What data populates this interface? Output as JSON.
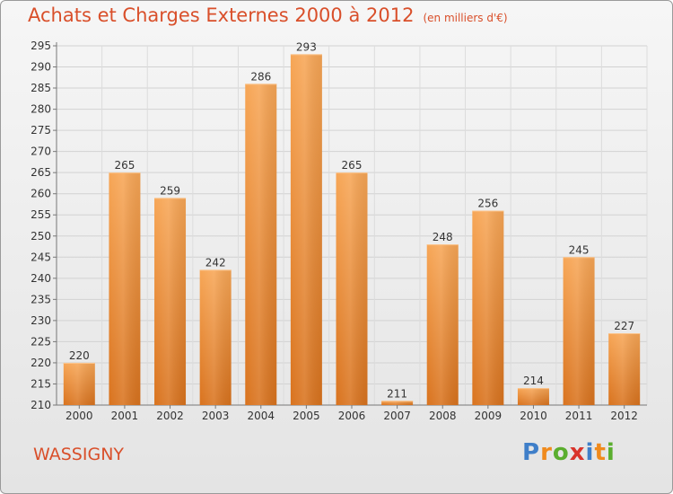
{
  "header": {
    "title": "Achats et Charges Externes 2000 à 2012",
    "unit": "(en milliers d'€)"
  },
  "footer": {
    "commune": "WASSIGNY",
    "logo_text": "Proxiti",
    "logo_letters": [
      {
        "ch": "P",
        "color": "#3f7fc9"
      },
      {
        "ch": "r",
        "color": "#f08a1c"
      },
      {
        "ch": "o",
        "color": "#5aae2e"
      },
      {
        "ch": "x",
        "color": "#d9342b"
      },
      {
        "ch": "i",
        "color": "#3f7fc9"
      },
      {
        "ch": "t",
        "color": "#f08a1c"
      },
      {
        "ch": "i",
        "color": "#5aae2e"
      }
    ]
  },
  "colors": {
    "accent": "#d94f2a",
    "bar_light": "#f7a656",
    "bar_dark": "#d9731e"
  },
  "chart_data": {
    "type": "bar",
    "title": "Achats et Charges Externes 2000 à 2012",
    "subtitle": "(en milliers d'€)",
    "categories": [
      "2000",
      "2001",
      "2002",
      "2003",
      "2004",
      "2005",
      "2006",
      "2007",
      "2008",
      "2009",
      "2010",
      "2011",
      "2012"
    ],
    "values": [
      220,
      265,
      259,
      242,
      286,
      293,
      265,
      211,
      248,
      256,
      214,
      245,
      227
    ],
    "ylim": [
      210,
      295
    ],
    "yticks": [
      210,
      215,
      220,
      225,
      230,
      235,
      240,
      245,
      250,
      255,
      260,
      265,
      270,
      275,
      280,
      285,
      290,
      295
    ],
    "grid": true,
    "data_labels": true
  }
}
